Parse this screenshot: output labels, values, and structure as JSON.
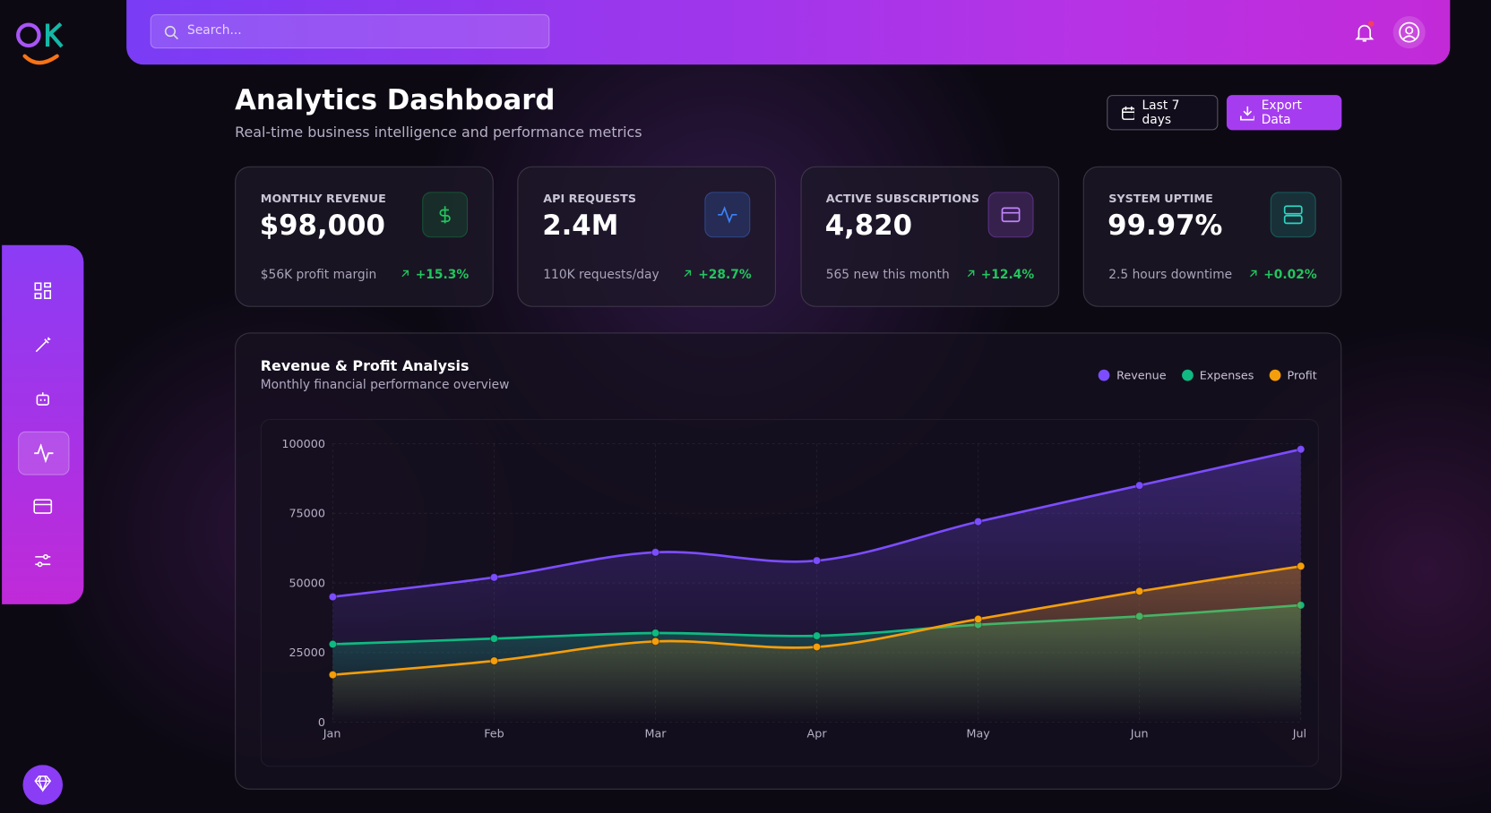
{
  "search": {
    "placeholder": "Search..."
  },
  "header": {
    "title": "Analytics Dashboard",
    "subtitle": "Real-time business intelligence and performance metrics"
  },
  "actions": {
    "date_range": "Last 7 days",
    "export": "Export Data"
  },
  "stats": [
    {
      "label": "MONTHLY REVENUE",
      "value": "$98,000",
      "note": "$56K profit margin",
      "change": "+15.3%"
    },
    {
      "label": "API REQUESTS",
      "value": "2.4M",
      "note": "110K requests/day",
      "change": "+28.7%"
    },
    {
      "label": "ACTIVE SUBSCRIPTIONS",
      "value": "4,820",
      "note": "565 new this month",
      "change": "+12.4%"
    },
    {
      "label": "SYSTEM UPTIME",
      "value": "99.97%",
      "note": "2.5 hours downtime",
      "change": "+0.02%"
    }
  ],
  "chart_data": {
    "type": "line",
    "title": "Revenue & Profit Analysis",
    "subtitle": "Monthly financial performance overview",
    "categories": [
      "Jan",
      "Feb",
      "Mar",
      "Apr",
      "May",
      "Jun",
      "Jul"
    ],
    "series": [
      {
        "name": "Revenue",
        "color": "#7c4dff",
        "values": [
          45000,
          52000,
          61000,
          58000,
          72000,
          85000,
          98000
        ]
      },
      {
        "name": "Expenses",
        "color": "#10b981",
        "values": [
          28000,
          30000,
          32000,
          31000,
          35000,
          38000,
          42000
        ]
      },
      {
        "name": "Profit",
        "color": "#f59e0b",
        "values": [
          17000,
          22000,
          29000,
          27000,
          37000,
          47000,
          56000
        ]
      }
    ],
    "ylim": [
      0,
      100000
    ],
    "yticks": [
      0,
      25000,
      50000,
      75000,
      100000
    ],
    "grid": true,
    "legend": "top-right",
    "area": true
  }
}
